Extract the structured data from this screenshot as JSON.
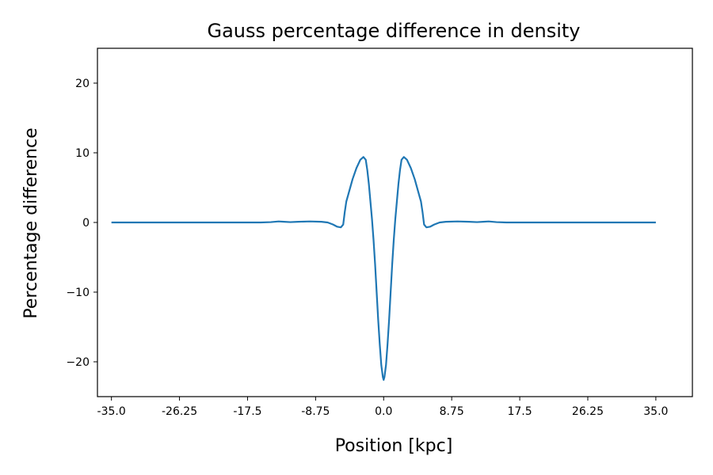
{
  "chart_data": {
    "type": "line",
    "title": "Gauss percentage difference in density",
    "xlabel": "Position [kpc]",
    "ylabel": "Percentage difference",
    "xlim": [
      -36.8,
      39.7
    ],
    "ylim": [
      -25,
      25
    ],
    "grid": false,
    "legend": "none",
    "x_ticks": [
      -35.0,
      -26.25,
      -17.5,
      -8.75,
      0.0,
      8.75,
      17.5,
      26.25,
      35.0
    ],
    "x_tick_labels": [
      "-35.0",
      "-26.25",
      "-17.5",
      "-8.75",
      "0.0",
      "8.75",
      "17.5",
      "26.25",
      "35.0"
    ],
    "y_ticks": [
      -20,
      -10,
      0,
      10,
      20
    ],
    "y_tick_labels": [
      "−20",
      "−10",
      "0",
      "10",
      "20"
    ],
    "series": [
      {
        "color": "#1f77b4",
        "x": [
          -35.0,
          -20.0,
          -15.8,
          -14.5,
          -13.5,
          -12.8,
          -12.0,
          -11.0,
          -9.5,
          -8.0,
          -7.2,
          -6.5,
          -6.0,
          -5.5,
          -5.2,
          -5.0,
          -4.8,
          -4.5,
          -4.0,
          -3.5,
          -3.0,
          -2.6,
          -2.3,
          -2.1,
          -1.9,
          -1.7,
          -1.5,
          -1.3,
          -1.1,
          -0.9,
          -0.7,
          -0.5,
          -0.3,
          -0.1,
          0.0,
          0.1,
          0.3,
          0.5,
          0.7,
          0.9,
          1.1,
          1.3,
          1.5,
          1.7,
          1.9,
          2.1,
          2.3,
          2.6,
          3.0,
          3.5,
          4.0,
          4.5,
          4.8,
          5.0,
          5.2,
          5.5,
          6.0,
          6.5,
          7.2,
          8.0,
          9.5,
          11.0,
          12.0,
          12.8,
          13.5,
          14.5,
          15.8,
          20.0,
          35.0
        ],
        "y": [
          0.0,
          0.0,
          0.0,
          0.05,
          0.15,
          0.1,
          0.05,
          0.1,
          0.15,
          0.1,
          0.0,
          -0.3,
          -0.6,
          -0.7,
          -0.3,
          1.5,
          3.0,
          4.2,
          6.2,
          7.8,
          9.0,
          9.4,
          9.0,
          7.5,
          5.5,
          3.0,
          0.5,
          -2.5,
          -6.0,
          -10.0,
          -14.0,
          -17.5,
          -20.5,
          -22.2,
          -22.6,
          -22.2,
          -20.5,
          -17.5,
          -14.0,
          -10.0,
          -6.0,
          -2.5,
          0.5,
          3.0,
          5.5,
          7.5,
          9.0,
          9.4,
          9.0,
          7.8,
          6.2,
          4.2,
          3.0,
          1.5,
          -0.3,
          -0.7,
          -0.6,
          -0.3,
          0.0,
          0.1,
          0.15,
          0.1,
          0.05,
          0.1,
          0.15,
          0.05,
          0.0,
          0.0,
          0.0
        ]
      }
    ]
  }
}
